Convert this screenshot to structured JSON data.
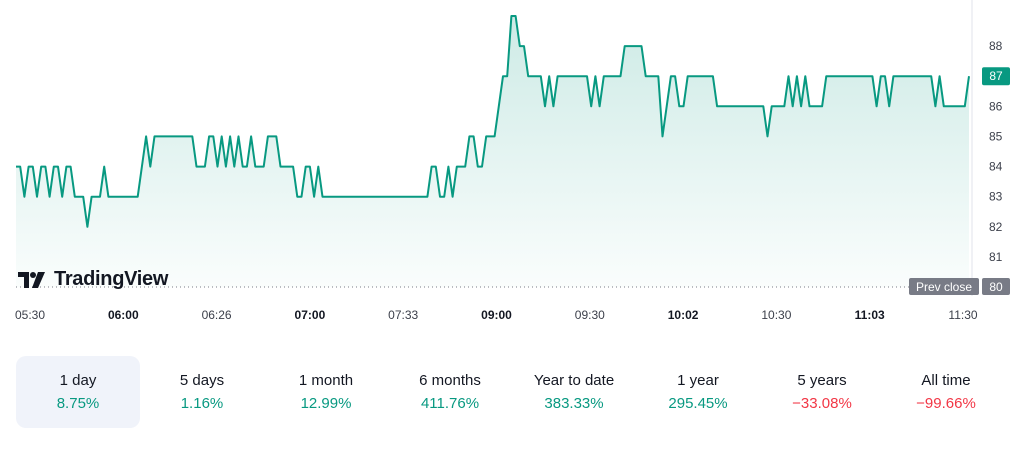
{
  "colors": {
    "line": "#089981",
    "negative": "#f23645",
    "prevclose_bg": "#787b86",
    "active_bg": "#f0f3fa"
  },
  "brand": {
    "name": "TradingView",
    "icon": "tradingview-logo-icon"
  },
  "chart_data": {
    "type": "area",
    "yticks": [
      81,
      82,
      83,
      84,
      85,
      86,
      87,
      88
    ],
    "ylim": [
      80,
      89
    ],
    "last_price": "87",
    "prev_close": {
      "label": "Prev close",
      "value": "80"
    },
    "xticks": [
      {
        "label": "05:30",
        "bold": false
      },
      {
        "label": "06:00",
        "bold": true
      },
      {
        "label": "06:26",
        "bold": false
      },
      {
        "label": "07:00",
        "bold": true
      },
      {
        "label": "07:33",
        "bold": false
      },
      {
        "label": "09:00",
        "bold": true
      },
      {
        "label": "09:30",
        "bold": false
      },
      {
        "label": "10:02",
        "bold": true
      },
      {
        "label": "10:30",
        "bold": false
      },
      {
        "label": "11:03",
        "bold": true
      },
      {
        "label": "11:30",
        "bold": false
      }
    ],
    "values": [
      84,
      84,
      83,
      84,
      84,
      83,
      84,
      84,
      83,
      84,
      84,
      83,
      84,
      84,
      83,
      83,
      83,
      82,
      83,
      83,
      83,
      84,
      83,
      83,
      83,
      83,
      83,
      83,
      83,
      83,
      84,
      85,
      84,
      85,
      85,
      85,
      85,
      85,
      85,
      85,
      85,
      85,
      85,
      84,
      84,
      84,
      85,
      85,
      84,
      85,
      84,
      85,
      84,
      85,
      84,
      84,
      85,
      84,
      84,
      84,
      85,
      85,
      85,
      84,
      84,
      84,
      84,
      83,
      83,
      84,
      84,
      83,
      84,
      83,
      83,
      83,
      83,
      83,
      83,
      83,
      83,
      83,
      83,
      83,
      83,
      83,
      83,
      83,
      83,
      83,
      83,
      83,
      83,
      83,
      83,
      83,
      83,
      83,
      83,
      84,
      84,
      83,
      83,
      84,
      83,
      84,
      84,
      84,
      85,
      85,
      84,
      84,
      85,
      85,
      85,
      86,
      87,
      87,
      89,
      89,
      88,
      88,
      87,
      87,
      87,
      87,
      86,
      87,
      86,
      87,
      87,
      87,
      87,
      87,
      87,
      87,
      87,
      86,
      87,
      86,
      87,
      87,
      87,
      87,
      87,
      88,
      88,
      88,
      88,
      88,
      87,
      87,
      87,
      87,
      85,
      86,
      87,
      87,
      86,
      86,
      87,
      87,
      87,
      87,
      87,
      87,
      87,
      86,
      86,
      86,
      86,
      86,
      86,
      86,
      86,
      86,
      86,
      86,
      86,
      85,
      86,
      86,
      86,
      86,
      87,
      86,
      87,
      86,
      87,
      86,
      86,
      86,
      86,
      87,
      87,
      87,
      87,
      87,
      87,
      87,
      87,
      87,
      87,
      87,
      87,
      86,
      87,
      87,
      86,
      87,
      87,
      87,
      87,
      87,
      87,
      87,
      87,
      87,
      87,
      86,
      87,
      86,
      86,
      86,
      86,
      86,
      86,
      87
    ]
  },
  "ranges": [
    {
      "label": "1 day",
      "value": "8.75%",
      "sign": "pos",
      "active": true
    },
    {
      "label": "5 days",
      "value": "1.16%",
      "sign": "pos",
      "active": false
    },
    {
      "label": "1 month",
      "value": "12.99%",
      "sign": "pos",
      "active": false
    },
    {
      "label": "6 months",
      "value": "411.76%",
      "sign": "pos",
      "active": false
    },
    {
      "label": "Year to date",
      "value": "383.33%",
      "sign": "pos",
      "active": false
    },
    {
      "label": "1 year",
      "value": "295.45%",
      "sign": "pos",
      "active": false
    },
    {
      "label": "5 years",
      "value": "−33.08%",
      "sign": "neg",
      "active": false
    },
    {
      "label": "All time",
      "value": "−99.66%",
      "sign": "neg",
      "active": false
    }
  ]
}
